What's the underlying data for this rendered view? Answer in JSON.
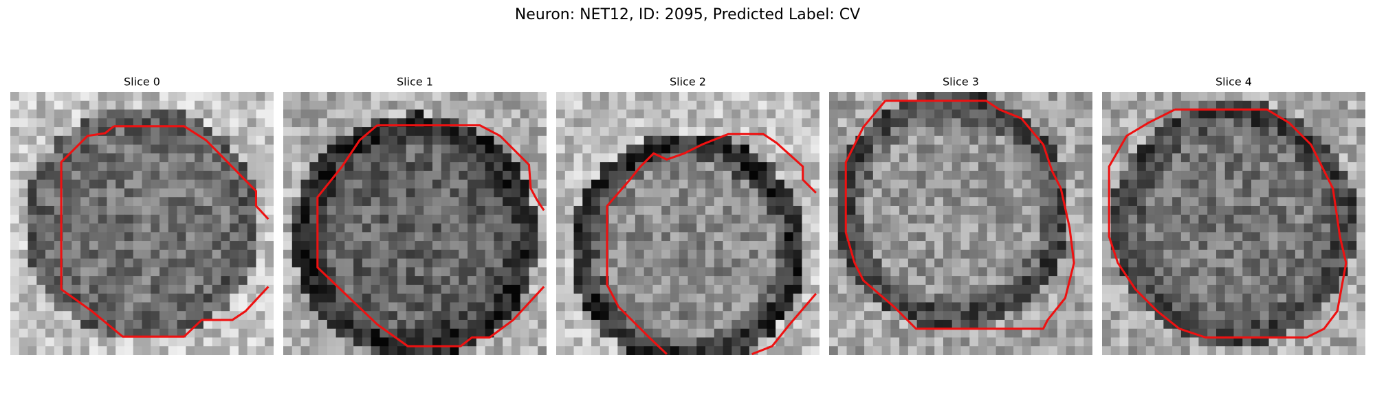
{
  "title": "Neuron: NET12, ID: 2095, Predicted Label: CV",
  "panels": [
    {
      "title": "Slice 0"
    },
    {
      "title": "Slice 1"
    },
    {
      "title": "Slice 2"
    },
    {
      "title": "Slice 3"
    },
    {
      "title": "Slice 4"
    }
  ]
}
